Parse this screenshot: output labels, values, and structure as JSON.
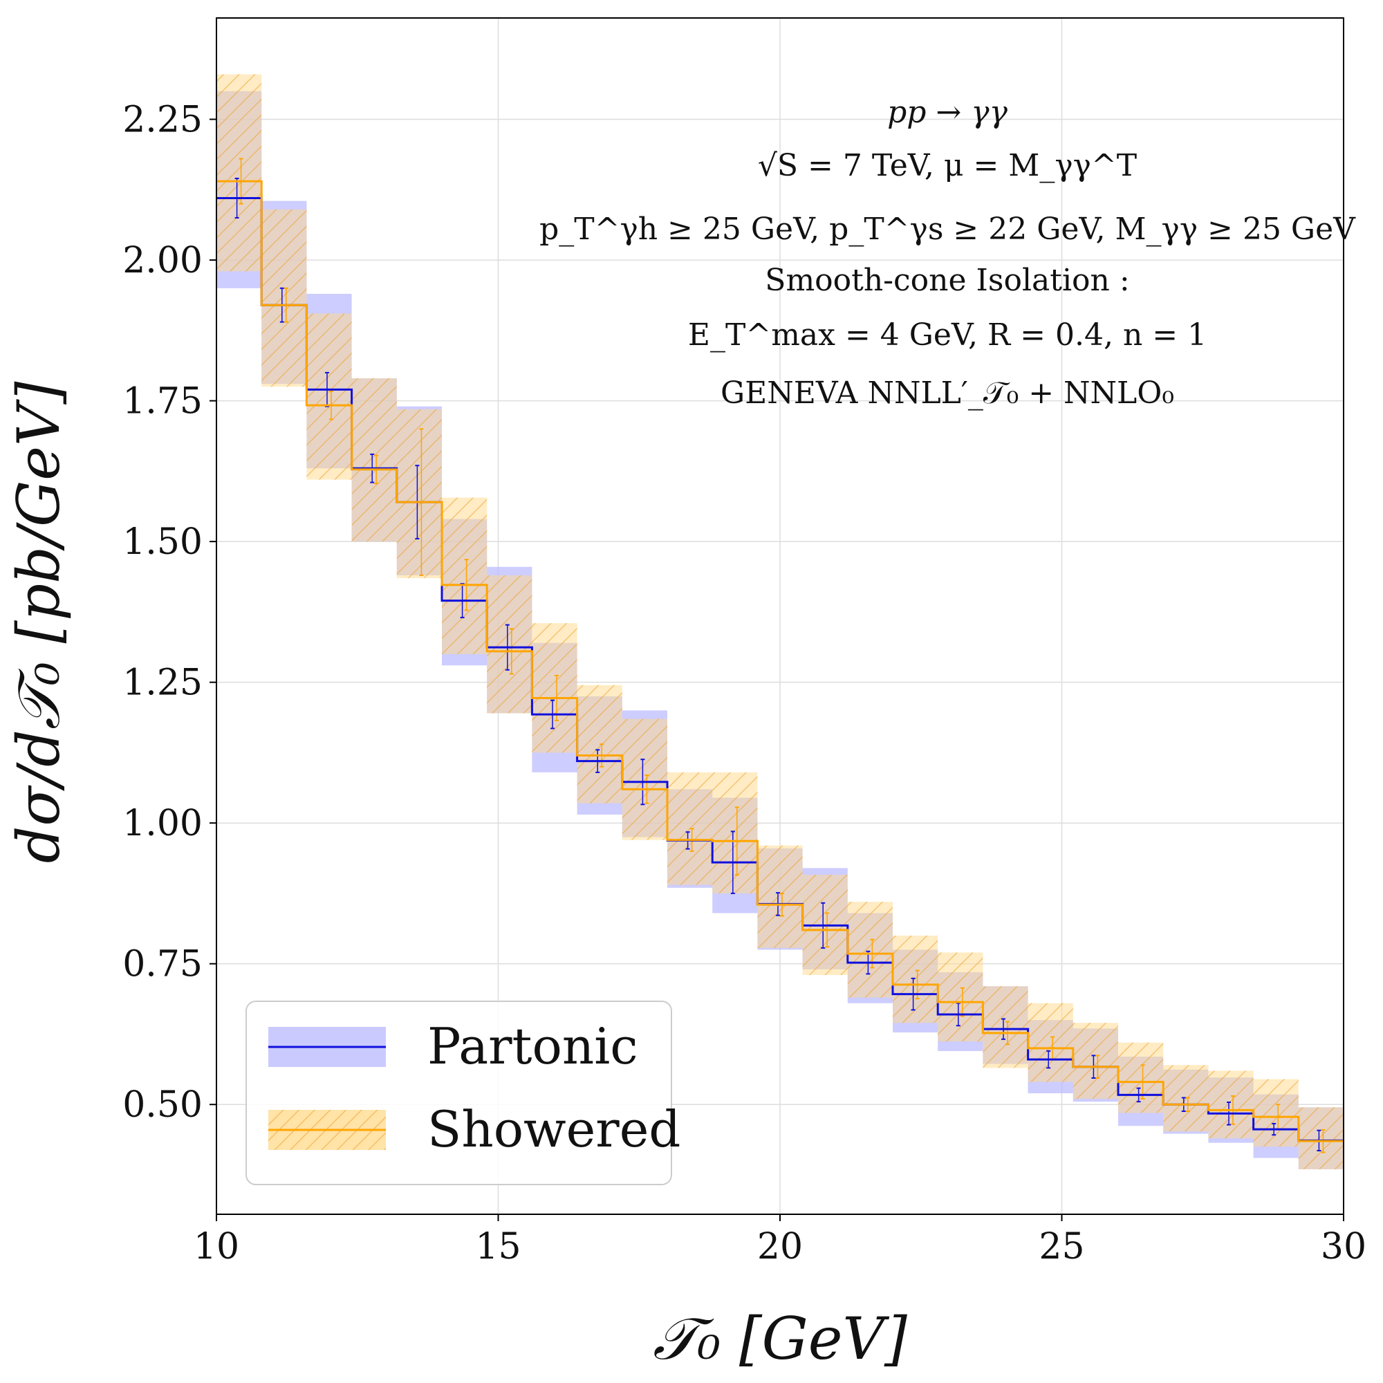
{
  "chart_data": {
    "type": "line",
    "subtype": "step-histogram-with-uncertainty-bands",
    "title": "",
    "xlabel": "𝒯₀   [GeV]",
    "ylabel": "dσ/d𝒯₀   [pb/GeV]",
    "xlim": [
      10,
      30
    ],
    "ylim": [
      0.305,
      2.43
    ],
    "grid": true,
    "x_ticks": [
      10,
      15,
      20,
      25,
      30
    ],
    "x_tick_labels": [
      "10",
      "15",
      "20",
      "25",
      "30"
    ],
    "y_ticks": [
      0.5,
      0.75,
      1.0,
      1.25,
      1.5,
      1.75,
      2.0,
      2.25
    ],
    "y_tick_labels": [
      "0.50",
      "0.75",
      "1.00",
      "1.25",
      "1.50",
      "1.75",
      "2.00",
      "2.25"
    ],
    "bin_edges": [
      10,
      10.8,
      11.6,
      12.4,
      13.2,
      14.0,
      14.8,
      15.6,
      16.4,
      17.2,
      18.0,
      18.8,
      19.6,
      20.4,
      21.2,
      22.0,
      22.8,
      23.6,
      24.4,
      25.2,
      26.0,
      26.8,
      27.6,
      28.4,
      29.2,
      30.0
    ],
    "series": [
      {
        "name": "Partonic",
        "color": "#1010dd",
        "band_color": "#b8b8ff",
        "values": [
          2.11,
          1.92,
          1.77,
          1.63,
          1.57,
          1.395,
          1.312,
          1.193,
          1.11,
          1.073,
          0.969,
          0.93,
          0.856,
          0.818,
          0.752,
          0.696,
          0.66,
          0.634,
          0.58,
          0.567,
          0.517,
          0.5,
          0.484,
          0.456,
          0.436
        ],
        "band_low": [
          1.95,
          1.78,
          1.63,
          1.5,
          1.44,
          1.28,
          1.195,
          1.09,
          1.015,
          0.975,
          0.885,
          0.84,
          0.775,
          0.74,
          0.68,
          0.628,
          0.595,
          0.572,
          0.52,
          0.505,
          0.462,
          0.448,
          0.432,
          0.405,
          0.385
        ],
        "band_high": [
          2.3,
          2.105,
          1.94,
          1.79,
          1.74,
          1.54,
          1.455,
          1.32,
          1.225,
          1.2,
          1.06,
          1.045,
          0.955,
          0.92,
          0.84,
          0.775,
          0.735,
          0.71,
          0.65,
          0.635,
          0.585,
          0.562,
          0.548,
          0.518,
          0.495
        ],
        "err": [
          0.035,
          0.03,
          0.03,
          0.025,
          0.065,
          0.03,
          0.04,
          0.025,
          0.02,
          0.04,
          0.015,
          0.055,
          0.02,
          0.04,
          0.02,
          0.028,
          0.02,
          0.018,
          0.015,
          0.02,
          0.012,
          0.012,
          0.02,
          0.01,
          0.018
        ]
      },
      {
        "name": "Showered",
        "color": "#ffa500",
        "band_color": "#ffd98a",
        "values": [
          2.14,
          1.92,
          1.742,
          1.628,
          1.57,
          1.423,
          1.305,
          1.222,
          1.12,
          1.06,
          0.97,
          0.968,
          0.855,
          0.81,
          0.768,
          0.713,
          0.682,
          0.627,
          0.6,
          0.567,
          0.54,
          0.5,
          0.49,
          0.478,
          0.435
        ],
        "band_low": [
          1.98,
          1.775,
          1.61,
          1.5,
          1.435,
          1.3,
          1.195,
          1.125,
          1.035,
          0.97,
          0.89,
          0.875,
          0.778,
          0.73,
          0.69,
          0.645,
          0.612,
          0.565,
          0.54,
          0.51,
          0.485,
          0.452,
          0.44,
          0.425,
          0.385
        ],
        "band_high": [
          2.33,
          2.09,
          1.905,
          1.79,
          1.735,
          1.578,
          1.44,
          1.355,
          1.245,
          1.185,
          1.09,
          1.09,
          0.96,
          0.908,
          0.86,
          0.8,
          0.77,
          0.71,
          0.68,
          0.645,
          0.61,
          0.57,
          0.56,
          0.545,
          0.495
        ],
        "err": [
          0.04,
          0.03,
          0.025,
          0.025,
          0.13,
          0.045,
          0.04,
          0.04,
          0.02,
          0.025,
          0.02,
          0.06,
          0.02,
          0.03,
          0.025,
          0.025,
          0.025,
          0.02,
          0.02,
          0.02,
          0.03,
          0.012,
          0.025,
          0.022,
          0.02
        ]
      }
    ],
    "legend": {
      "position": "bottom-left",
      "entries": [
        "Partonic",
        "Showered"
      ]
    },
    "annotations": [
      "pp → γγ",
      "√S = 7 TeV,  μ = M_γγ^T",
      "p_T^γh ≥ 25 GeV,   p_T^γs ≥ 22 GeV,   M_γγ ≥ 25 GeV",
      "Smooth-cone Isolation :",
      "E_T^max = 4 GeV,   R = 0.4,   n = 1",
      "GENEVA   NNLL′_𝒯₀ + NNLO₀"
    ]
  }
}
